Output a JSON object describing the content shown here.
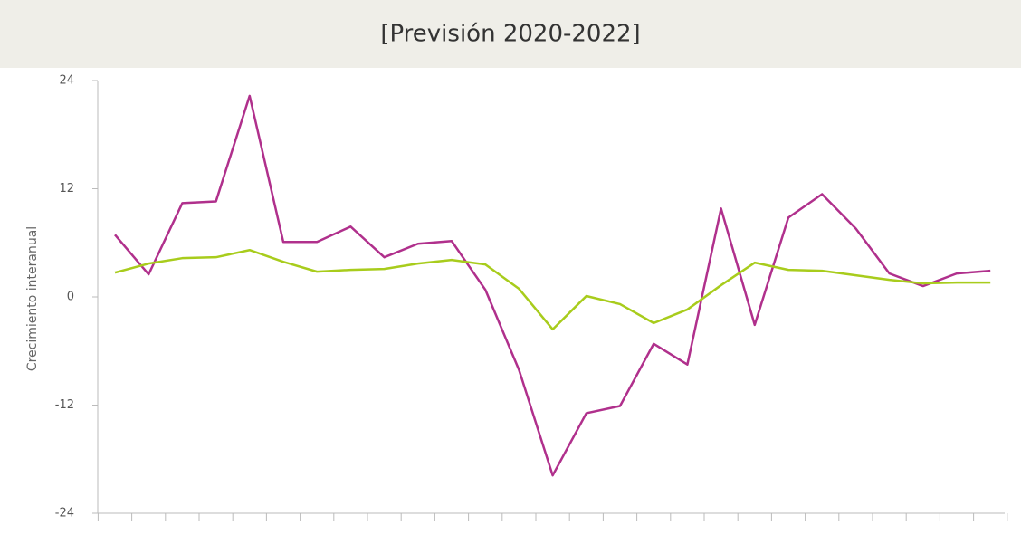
{
  "chart_data": {
    "type": "line",
    "subtitle": "[Previsión 2020-2022]",
    "y_label": "Crecimiento interanual",
    "categories": [
      null,
      null,
      null,
      null,
      null,
      null,
      null,
      null,
      null,
      null,
      null,
      null,
      null,
      null,
      null,
      null,
      null,
      null,
      null,
      null,
      null,
      null,
      null,
      null,
      null,
      null,
      null
    ],
    "series": [
      {
        "color": "#b0308c",
        "values": [
          6.9,
          2.5,
          10.4,
          10.6,
          22.3,
          6.1,
          6.1,
          7.8,
          4.4,
          5.9,
          6.2,
          0.8,
          -8.1,
          -19.8,
          -12.9,
          -12.1,
          -5.2,
          -7.5,
          9.8,
          -3.1,
          8.8,
          11.4,
          7.6,
          2.6,
          1.2,
          2.6,
          2.9
        ]
      },
      {
        "color": "#a8cc1c",
        "values": [
          2.7,
          3.7,
          4.3,
          4.4,
          5.2,
          3.9,
          2.8,
          3.0,
          3.1,
          3.7,
          4.1,
          3.6,
          0.9,
          -3.6,
          0.1,
          -0.8,
          -2.9,
          -1.4,
          1.3,
          3.8,
          3.0,
          2.9,
          2.4,
          1.9,
          1.5,
          1.6,
          1.6
        ]
      }
    ],
    "ylim": [
      -24,
      24
    ],
    "yticks": [
      -24,
      -12,
      0,
      12,
      24
    ],
    "grid": false
  }
}
